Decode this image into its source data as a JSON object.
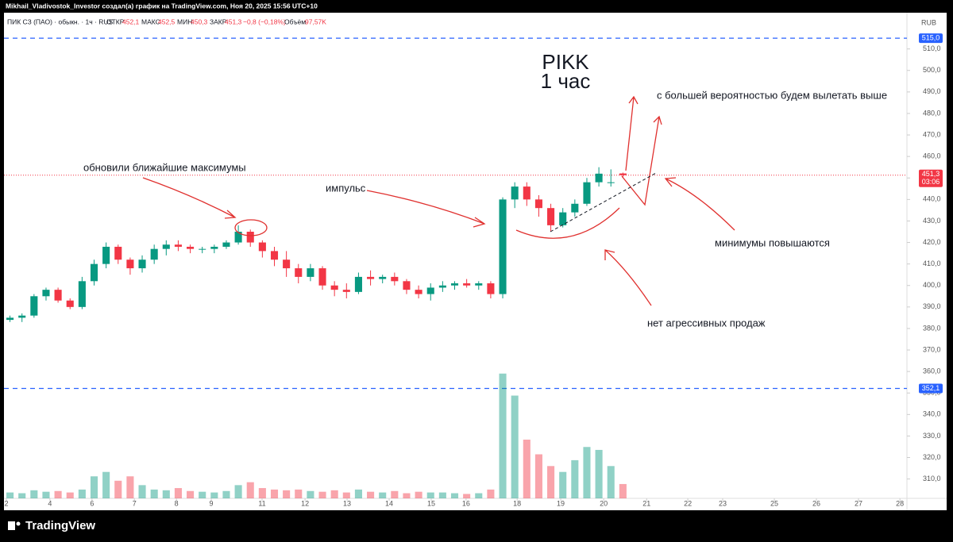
{
  "header": "Mikhail_Vladivostok_Investor создал(а) график на TradingView.com, Ноя 20, 2025 15:56 UTC+10",
  "footer": "TradingView",
  "chart_data": {
    "type": "candlestick",
    "title": [
      "PIKK",
      "1 час"
    ],
    "legend": {
      "symbol": "ПИК СЗ (ПАО) · обыкн. · 1ч · RUS",
      "open_label": "ОТКР",
      "open": "452,1",
      "high_label": "МАКС",
      "high": "452,5",
      "low_label": "МИН",
      "low": "450,3",
      "close_label": "ЗАКР",
      "close": "451,3",
      "change": "−0,8 (−0,18%)",
      "volume_label": "Объём",
      "volume": "97,57K"
    },
    "currency": "RUB",
    "x": [
      2,
      6,
      10,
      14,
      18,
      22,
      26,
      30,
      34,
      38,
      42,
      46,
      50,
      54,
      58,
      62,
      66,
      70,
      74,
      78,
      82,
      86,
      90,
      94,
      98,
      102,
      106,
      110,
      114,
      118,
      122,
      126,
      130,
      134,
      138,
      142,
      146,
      150,
      154,
      158,
      162,
      166,
      170,
      174,
      178,
      182,
      186,
      190,
      194,
      198,
      202,
      206
    ],
    "open": [
      384,
      385,
      386,
      395,
      398,
      393,
      390,
      402,
      410,
      418,
      412,
      408,
      412,
      417,
      419,
      418,
      417,
      417,
      418,
      420,
      425,
      420,
      416,
      412,
      408,
      404,
      408,
      400,
      398,
      397,
      404,
      403,
      404,
      402,
      398,
      396,
      399,
      400,
      401,
      400,
      401,
      396,
      440,
      446,
      440,
      436,
      428,
      434,
      438,
      448,
      448,
      452.1
    ],
    "high": [
      386,
      387,
      396,
      399,
      399,
      394,
      404,
      412,
      420,
      419,
      413,
      414,
      419,
      421,
      421,
      419,
      418,
      419,
      421,
      428,
      426,
      421,
      418,
      416,
      410,
      410,
      409,
      402,
      401,
      406,
      407,
      405,
      406,
      403,
      400,
      401,
      402,
      402,
      403,
      402,
      402,
      441,
      448,
      448,
      442,
      438,
      436,
      440,
      450,
      455,
      454,
      452.5
    ],
    "low": [
      383,
      383,
      385,
      393,
      392,
      389,
      389,
      400,
      408,
      410,
      405,
      406,
      410,
      414,
      416,
      415,
      415,
      415,
      417,
      419,
      418,
      413,
      409,
      404,
      401,
      402,
      398,
      395,
      394,
      396,
      400,
      401,
      400,
      396,
      394,
      393,
      397,
      398,
      399,
      398,
      394,
      394,
      436,
      437,
      432,
      425,
      427,
      432,
      437,
      446,
      446,
      450.3
    ],
    "close": [
      385,
      386,
      395,
      398,
      393,
      390,
      402,
      410,
      418,
      412,
      408,
      412,
      417,
      419,
      418,
      417,
      417,
      418,
      420,
      425,
      420,
      416,
      412,
      408,
      404,
      408,
      400,
      398,
      397,
      404,
      403,
      404,
      402,
      398,
      396,
      399,
      400,
      401,
      400,
      401,
      396,
      440,
      446,
      440,
      436,
      428,
      434,
      438,
      448,
      452,
      448,
      451.3
    ],
    "volume": [
      40,
      35,
      55,
      45,
      50,
      40,
      60,
      150,
      180,
      120,
      150,
      90,
      60,
      55,
      70,
      50,
      45,
      40,
      50,
      90,
      110,
      70,
      60,
      55,
      60,
      50,
      45,
      55,
      40,
      60,
      45,
      40,
      50,
      35,
      45,
      40,
      40,
      35,
      30,
      35,
      60,
      850,
      700,
      400,
      300,
      220,
      180,
      260,
      350,
      330,
      220,
      97.57
    ],
    "volume_ylim": [
      0,
      1000
    ],
    "xlim": [
      0,
      300
    ],
    "xticks": [
      {
        "value": 0.8,
        "label": "2"
      },
      {
        "value": 15.3,
        "label": "4"
      },
      {
        "value": 29.3,
        "label": "6"
      },
      {
        "value": 43.4,
        "label": "7"
      },
      {
        "value": 57.4,
        "label": "8"
      },
      {
        "value": 69,
        "label": "9"
      },
      {
        "value": 85.9,
        "label": "11"
      },
      {
        "value": 100.2,
        "label": "12"
      },
      {
        "value": 114.2,
        "label": "13"
      },
      {
        "value": 128.2,
        "label": "14"
      },
      {
        "value": 142.2,
        "label": "15"
      },
      {
        "value": 153.8,
        "label": "16"
      },
      {
        "value": 170.8,
        "label": "18"
      },
      {
        "value": 185.3,
        "label": "19"
      },
      {
        "value": 199.6,
        "label": "20"
      },
      {
        "value": 213.9,
        "label": "21"
      },
      {
        "value": 227.6,
        "label": "22"
      },
      {
        "value": 239.2,
        "label": "23"
      },
      {
        "value": 256.4,
        "label": "25"
      },
      {
        "value": 270.4,
        "label": "26"
      },
      {
        "value": 284.4,
        "label": "27"
      },
      {
        "value": 298.2,
        "label": "28"
      }
    ],
    "ylim": [
      301,
      518
    ],
    "yticks": [
      {
        "value": 310,
        "label": "310,0"
      },
      {
        "value": 320,
        "label": "320,0"
      },
      {
        "value": 330,
        "label": "330,0"
      },
      {
        "value": 340,
        "label": "340,0"
      },
      {
        "value": 350,
        "label": "350,0"
      },
      {
        "value": 360,
        "label": "360,0"
      },
      {
        "value": 370,
        "label": "370,0"
      },
      {
        "value": 380,
        "label": "380,0"
      },
      {
        "value": 390,
        "label": "390,0"
      },
      {
        "value": 400,
        "label": "400,0"
      },
      {
        "value": 410,
        "label": "410,0"
      },
      {
        "value": 420,
        "label": "420,0"
      },
      {
        "value": 430,
        "label": "430,0"
      },
      {
        "value": 440,
        "label": "440,0"
      },
      {
        "value": 450,
        "label": "450,0"
      },
      {
        "value": 460,
        "label": "460,0"
      },
      {
        "value": 470,
        "label": "470,0"
      },
      {
        "value": 480,
        "label": "480,0"
      },
      {
        "value": 490,
        "label": "490,0"
      },
      {
        "value": 500,
        "label": "500,0"
      },
      {
        "value": 510,
        "label": "510,0"
      }
    ],
    "levels": [
      {
        "value": 515,
        "label": "515,0"
      },
      {
        "value": 352.1,
        "label": "352,1"
      }
    ],
    "last_price": {
      "value": 451.3,
      "label": "451,3",
      "countdown": "03:06"
    },
    "up_color": "#089981",
    "down_color": "#f23645",
    "level_color": "#2962ff",
    "annotations": [
      "обновили ближайшие максимумы",
      "импульс",
      "с большей вероятностью будем вылетать выше",
      "минимумы повышаются",
      "нет агрессивных продаж"
    ]
  }
}
